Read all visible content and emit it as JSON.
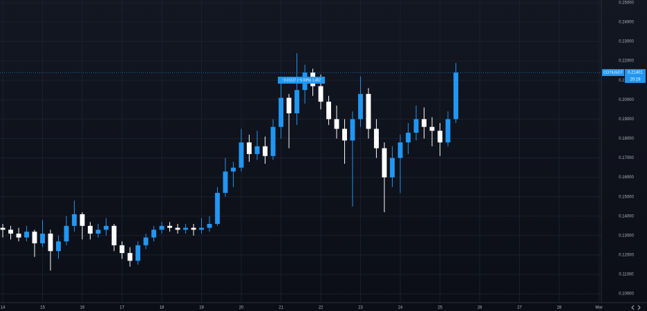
{
  "chart_data": {
    "type": "candlestick",
    "symbol": "COTIUSDT",
    "last_price_label": "0.21401",
    "countdown": "20:19",
    "measure_label": "−0.01137 (−5.03%) 1,452",
    "up_color": "#2196f3",
    "down_color": "#ffffff",
    "x": [
      14.0,
      14.2,
      14.4,
      14.6,
      14.8,
      15.0,
      15.2,
      15.4,
      15.6,
      15.8,
      16.0,
      16.2,
      16.4,
      16.6,
      16.8,
      17.0,
      17.2,
      17.4,
      17.6,
      17.8,
      18.0,
      18.2,
      18.4,
      18.6,
      18.8,
      19.0,
      19.2,
      19.4,
      19.6,
      19.8,
      20.0,
      20.2,
      20.4,
      20.6,
      20.8,
      21.0,
      21.2,
      21.4,
      21.6,
      21.8,
      22.0,
      22.2,
      22.4,
      22.6,
      22.8,
      23.0,
      23.2,
      23.4,
      23.6,
      23.8,
      24.0,
      24.2,
      24.4,
      24.6,
      24.8,
      25.0,
      25.2,
      25.4
    ],
    "open": [
      0.134,
      0.133,
      0.131,
      0.129,
      0.132,
      0.126,
      0.131,
      0.122,
      0.127,
      0.135,
      0.141,
      0.135,
      0.131,
      0.133,
      0.135,
      0.125,
      0.121,
      0.117,
      0.125,
      0.129,
      0.133,
      0.135,
      0.134,
      0.133,
      0.134,
      0.133,
      0.134,
      0.136,
      0.152,
      0.163,
      0.165,
      0.178,
      0.172,
      0.176,
      0.171,
      0.186,
      0.201,
      0.193,
      0.205,
      0.214,
      0.207,
      0.199,
      0.19,
      0.185,
      0.179,
      0.19,
      0.203,
      0.185,
      0.175,
      0.16,
      0.17,
      0.178,
      0.183,
      0.19,
      0.186,
      0.184,
      0.178,
      0.19
    ],
    "high": [
      0.136,
      0.135,
      0.134,
      0.135,
      0.133,
      0.138,
      0.133,
      0.13,
      0.14,
      0.148,
      0.142,
      0.137,
      0.136,
      0.139,
      0.136,
      0.127,
      0.124,
      0.127,
      0.131,
      0.135,
      0.137,
      0.137,
      0.136,
      0.136,
      0.136,
      0.139,
      0.14,
      0.155,
      0.17,
      0.168,
      0.185,
      0.182,
      0.184,
      0.181,
      0.19,
      0.21,
      0.203,
      0.224,
      0.218,
      0.216,
      0.213,
      0.202,
      0.197,
      0.19,
      0.194,
      0.212,
      0.206,
      0.19,
      0.178,
      0.176,
      0.182,
      0.188,
      0.197,
      0.196,
      0.191,
      0.188,
      0.194,
      0.219
    ],
    "low": [
      0.129,
      0.128,
      0.127,
      0.127,
      0.119,
      0.124,
      0.112,
      0.118,
      0.125,
      0.132,
      0.128,
      0.128,
      0.129,
      0.13,
      0.122,
      0.118,
      0.114,
      0.115,
      0.123,
      0.127,
      0.131,
      0.132,
      0.131,
      0.131,
      0.13,
      0.131,
      0.132,
      0.135,
      0.15,
      0.155,
      0.163,
      0.168,
      0.169,
      0.167,
      0.169,
      0.18,
      0.175,
      0.187,
      0.198,
      0.202,
      0.195,
      0.187,
      0.18,
      0.167,
      0.145,
      0.186,
      0.18,
      0.17,
      0.142,
      0.155,
      0.152,
      0.172,
      0.179,
      0.18,
      0.176,
      0.171,
      0.176,
      0.188
    ],
    "close": [
      0.133,
      0.131,
      0.129,
      0.132,
      0.126,
      0.131,
      0.122,
      0.127,
      0.135,
      0.141,
      0.135,
      0.131,
      0.133,
      0.135,
      0.125,
      0.121,
      0.117,
      0.125,
      0.129,
      0.133,
      0.135,
      0.134,
      0.133,
      0.134,
      0.133,
      0.134,
      0.136,
      0.152,
      0.163,
      0.165,
      0.178,
      0.172,
      0.176,
      0.171,
      0.186,
      0.201,
      0.193,
      0.205,
      0.214,
      0.207,
      0.199,
      0.19,
      0.185,
      0.179,
      0.19,
      0.203,
      0.185,
      0.175,
      0.16,
      0.17,
      0.178,
      0.183,
      0.19,
      0.186,
      0.184,
      0.178,
      0.19,
      0.21401
    ],
    "xlim": [
      13.93,
      29.06
    ],
    "ylim": [
      0.0954,
      0.2514
    ],
    "xticks": [
      14,
      15,
      16,
      17,
      18,
      19,
      20,
      21,
      22,
      23,
      24,
      25,
      26,
      27,
      28,
      {
        "value": 29,
        "label": "Mar"
      }
    ],
    "yticks": [
      {
        "value": 0.1,
        "label": "0.10000"
      },
      {
        "value": 0.11,
        "label": "0.11000"
      },
      {
        "value": 0.12,
        "label": "0.12000"
      },
      {
        "value": 0.13,
        "label": "0.13000"
      },
      {
        "value": 0.14,
        "label": "0.14000"
      },
      {
        "value": 0.15,
        "label": "0.15000"
      },
      {
        "value": 0.16,
        "label": "0.16000"
      },
      {
        "value": 0.17,
        "label": "0.17000"
      },
      {
        "value": 0.18,
        "label": "0.18000"
      },
      {
        "value": 0.19,
        "label": "0.19000"
      },
      {
        "value": 0.2,
        "label": "0.20000"
      },
      {
        "value": 0.21,
        "label": "0.21000"
      },
      {
        "value": 0.22,
        "label": "0.22000"
      },
      {
        "value": 0.23,
        "label": "0.23000"
      },
      {
        "value": 0.24,
        "label": "0.24000"
      },
      {
        "value": 0.25,
        "label": "0.25000"
      }
    ],
    "grid": true
  }
}
